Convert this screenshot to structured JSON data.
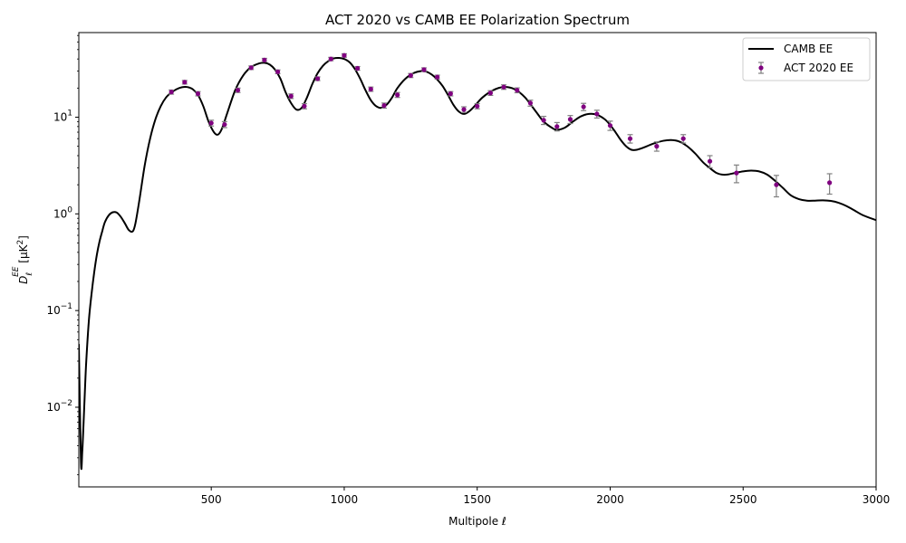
{
  "chart_data": {
    "type": "line",
    "title": "ACT 2020 vs CAMB EE Polarization Spectrum",
    "xlabel": "Multipole ℓ",
    "ylabel": {
      "main": "D",
      "sub": "ℓ",
      "sup": "EE",
      "unit_open": " [μK",
      "unit_sup": "2",
      "unit_close": "]"
    },
    "xlim": [
      2,
      3000
    ],
    "ylim": [
      0.0015,
      75
    ],
    "yscale": "log",
    "xticks": [
      500,
      1000,
      1500,
      2000,
      2500,
      3000
    ],
    "xtick_labels": [
      "500",
      "1000",
      "1500",
      "2000",
      "2500",
      "3000"
    ],
    "yticks": [
      {
        "value": 0.01,
        "base": "10",
        "exp": "−2"
      },
      {
        "value": 0.1,
        "base": "10",
        "exp": "−1"
      },
      {
        "value": 1,
        "base": "10",
        "exp": "0"
      },
      {
        "value": 10,
        "base": "10",
        "exp": "1"
      }
    ],
    "grid": false,
    "legend_position": "top-right",
    "series": [
      {
        "name": "CAMB EE",
        "kind": "line",
        "color": "#000000",
        "x": [
          2,
          10,
          15,
          20,
          25,
          30,
          40,
          50,
          60,
          70,
          80,
          90,
          100,
          115,
          130,
          145,
          160,
          175,
          190,
          205,
          215,
          230,
          250,
          270,
          290,
          310,
          330,
          350,
          370,
          390,
          410,
          430,
          450,
          470,
          490,
          510,
          525,
          540,
          560,
          590,
          620,
          650,
          680,
          700,
          720,
          740,
          760,
          780,
          800,
          820,
          840,
          860,
          880,
          900,
          920,
          940,
          960,
          980,
          1000,
          1020,
          1040,
          1060,
          1080,
          1100,
          1120,
          1140,
          1160,
          1180,
          1200,
          1230,
          1260,
          1290,
          1310,
          1330,
          1350,
          1370,
          1390,
          1410,
          1430,
          1450,
          1470,
          1490,
          1520,
          1560,
          1600,
          1640,
          1680,
          1720,
          1750,
          1780,
          1800,
          1830,
          1860,
          1890,
          1920,
          1950,
          1980,
          2000,
          2020,
          2040,
          2060,
          2080,
          2100,
          2130,
          2160,
          2200,
          2230,
          2260,
          2290,
          2320,
          2350,
          2380,
          2400,
          2420,
          2440,
          2470,
          2500,
          2530,
          2560,
          2590,
          2620,
          2650,
          2680,
          2710,
          2740,
          2770,
          2800,
          2830,
          2860,
          2890,
          2920,
          2950,
          3000
        ],
        "y": [
          0.045,
          0.0027,
          0.0035,
          0.007,
          0.015,
          0.03,
          0.08,
          0.15,
          0.25,
          0.38,
          0.52,
          0.66,
          0.82,
          0.97,
          1.04,
          1.03,
          0.93,
          0.8,
          0.68,
          0.66,
          0.8,
          1.4,
          3.2,
          6.0,
          9.5,
          13.0,
          16.0,
          18.0,
          19.5,
          20.4,
          20.5,
          19.5,
          17.0,
          13.0,
          9.0,
          7.0,
          6.6,
          7.6,
          11.0,
          19.0,
          27.0,
          33.0,
          36.0,
          36.5,
          35.0,
          31.0,
          25.0,
          18.0,
          14.0,
          12.0,
          12.5,
          16.0,
          22.0,
          28.5,
          34.0,
          38.0,
          40.5,
          41.0,
          40.0,
          37.0,
          31.5,
          25.0,
          19.0,
          15.0,
          13.0,
          12.5,
          13.5,
          16.0,
          20.0,
          25.0,
          28.5,
          30.0,
          29.5,
          27.5,
          24.5,
          21.0,
          17.0,
          13.5,
          11.5,
          10.8,
          11.5,
          13.0,
          16.0,
          19.0,
          20.5,
          19.5,
          16.0,
          11.5,
          9.0,
          7.8,
          7.4,
          7.8,
          9.0,
          10.2,
          10.8,
          10.6,
          9.5,
          8.3,
          7.0,
          5.8,
          5.0,
          4.6,
          4.6,
          4.9,
          5.3,
          5.7,
          5.8,
          5.6,
          5.0,
          4.2,
          3.4,
          2.9,
          2.65,
          2.55,
          2.55,
          2.65,
          2.75,
          2.8,
          2.75,
          2.55,
          2.2,
          1.85,
          1.55,
          1.42,
          1.37,
          1.37,
          1.38,
          1.36,
          1.3,
          1.2,
          1.08,
          0.97,
          0.86
        ],
        "stroke_width": 2
      },
      {
        "name": "ACT 2020 EE",
        "kind": "errorbar",
        "color": "#800080",
        "ecolor": "#808080",
        "x": [
          350,
          400,
          450,
          500,
          550,
          600,
          650,
          700,
          750,
          800,
          850,
          900,
          950,
          1000,
          1050,
          1100,
          1150,
          1200,
          1250,
          1300,
          1350,
          1400,
          1450,
          1500,
          1550,
          1600,
          1650,
          1700,
          1750,
          1800,
          1850,
          1900,
          1950,
          2000,
          2075,
          2175,
          2275,
          2375,
          2475,
          2625,
          2825
        ],
        "y": [
          18.2,
          23.0,
          17.5,
          8.7,
          8.4,
          19.0,
          32.5,
          39.0,
          29.5,
          16.5,
          13.0,
          25.0,
          40.0,
          43.5,
          32.0,
          19.5,
          13.2,
          17.0,
          27.0,
          31.0,
          26.0,
          17.5,
          12.0,
          13.0,
          17.8,
          20.5,
          19.0,
          14.0,
          9.3,
          8.0,
          9.5,
          12.8,
          10.8,
          8.2,
          6.0,
          5.0,
          6.0,
          3.5,
          2.65,
          2.0,
          2.1
        ],
        "yerr": [
          0.9,
          1.0,
          0.9,
          0.6,
          0.6,
          1.0,
          1.4,
          1.6,
          1.3,
          0.9,
          0.8,
          1.1,
          1.6,
          1.8,
          1.4,
          1.0,
          0.8,
          1.0,
          1.3,
          1.4,
          1.2,
          0.9,
          0.8,
          0.8,
          1.0,
          1.1,
          1.1,
          1.0,
          0.9,
          0.8,
          0.9,
          1.1,
          1.0,
          0.9,
          0.6,
          0.55,
          0.6,
          0.5,
          0.55,
          0.5,
          0.5
        ]
      }
    ]
  }
}
